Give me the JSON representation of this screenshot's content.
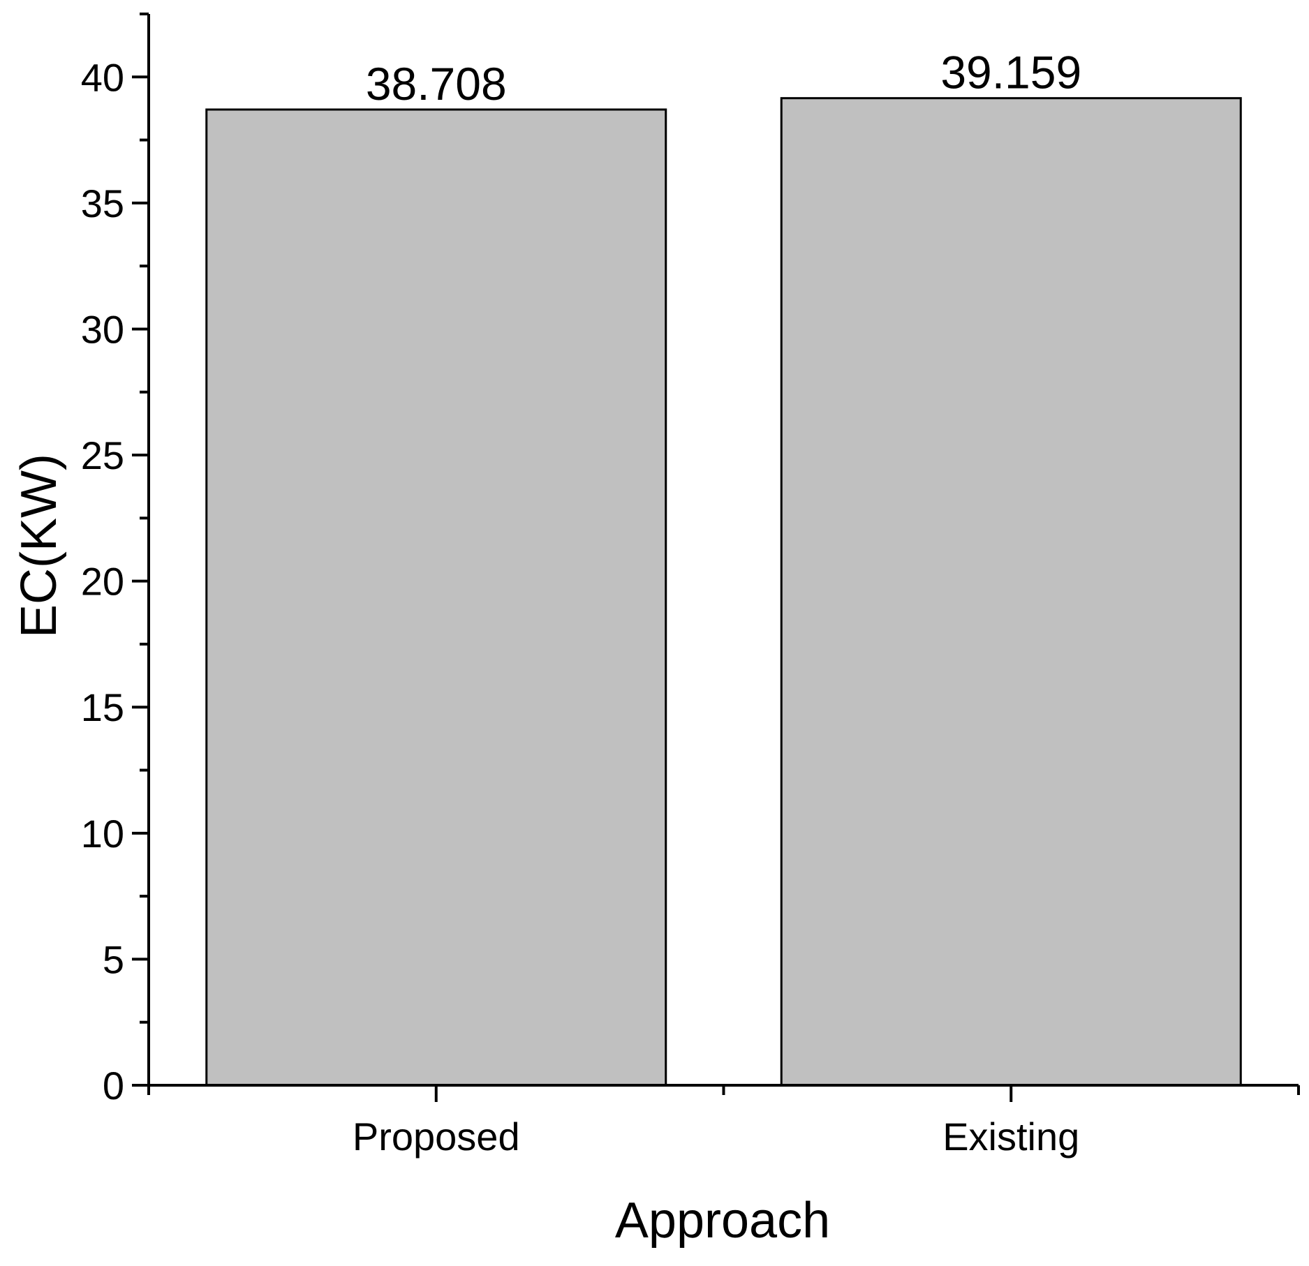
{
  "chart_data": {
    "type": "bar",
    "categories": [
      "Proposed",
      "Existing"
    ],
    "values": [
      38.708,
      39.159
    ],
    "data_labels": [
      "38.708",
      "39.159"
    ],
    "xlabel": "Approach",
    "ylabel": "EC(KW)",
    "ylim": [
      0,
      42.5
    ],
    "yticks": [
      0,
      5,
      10,
      15,
      20,
      25,
      30,
      35,
      40
    ],
    "ytick_labels": [
      "0",
      "5",
      "10",
      "15",
      "20",
      "25",
      "30",
      "35",
      "40"
    ],
    "bar_color": "#c0c0c0",
    "grid": false,
    "legend": "none"
  }
}
